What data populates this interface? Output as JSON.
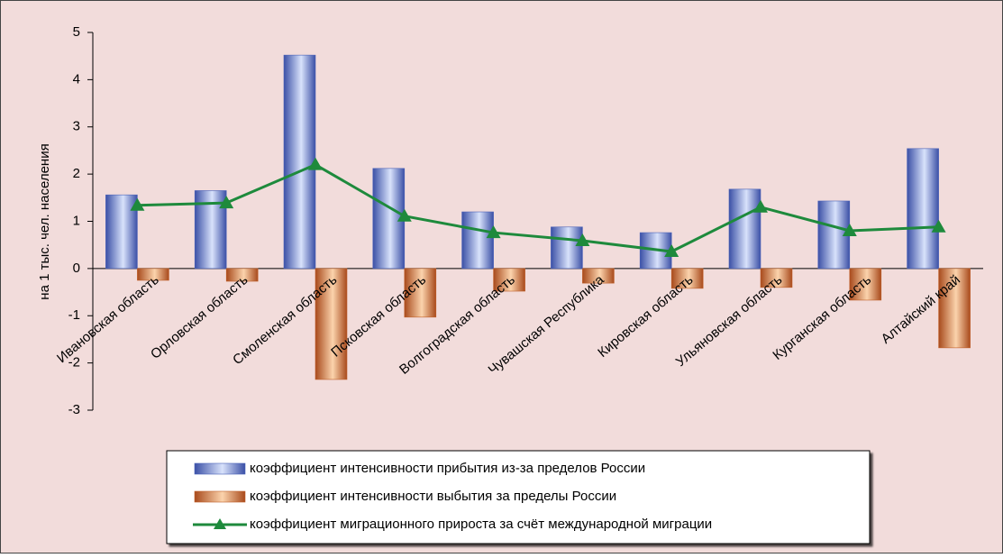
{
  "chart_data": {
    "type": "bar",
    "y_label": "на 1 тыс. чел. населения",
    "categories": [
      "Ивановская область",
      "Орловская область",
      "Смоленская область",
      "Псковская область",
      "Волгоградская область",
      "Чувашская Республика",
      "Кировская область",
      "Ульяновская область",
      "Курганская область",
      "Алтайский край"
    ],
    "series": [
      {
        "name": "коэффициент интенсивности прибытия из-за пределов России",
        "color": "#4a62b8",
        "values": [
          1.56,
          1.65,
          4.52,
          2.12,
          1.2,
          0.88,
          0.76,
          1.68,
          1.43,
          2.54
        ]
      },
      {
        "name": "коэффициент интенсивности выбытия за пределы России",
        "color": "#c0602a",
        "values": [
          -0.25,
          -0.27,
          -2.35,
          -1.03,
          -0.48,
          -0.31,
          -0.42,
          -0.4,
          -0.67,
          -1.68
        ]
      },
      {
        "name": "коэффициент миграционного прироста за счёт международной миграции",
        "color": "#1e8a3c",
        "type": "line",
        "values": [
          1.34,
          1.39,
          2.2,
          1.11,
          0.76,
          0.59,
          0.36,
          1.3,
          0.8,
          0.88
        ]
      }
    ],
    "ylim": [
      -3,
      5
    ],
    "yticks": [
      -3,
      -2,
      -1,
      0,
      1,
      2,
      3,
      4,
      5
    ],
    "legend": "bottom"
  }
}
